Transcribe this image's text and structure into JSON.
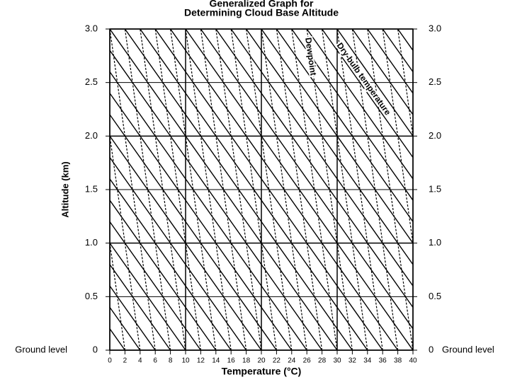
{
  "chart_data": {
    "type": "line",
    "title": [
      "Generalized Graph for",
      "Determining Cloud Base Altitude"
    ],
    "xlabel": "Temperature (°C)",
    "ylabel": "Altitude (km)",
    "ground_label": "Ground level",
    "xlim": [
      0,
      40
    ],
    "ylim": [
      0,
      3
    ],
    "xticks": [
      0,
      2,
      4,
      6,
      8,
      10,
      12,
      14,
      16,
      18,
      20,
      22,
      24,
      26,
      28,
      30,
      32,
      34,
      36,
      38,
      40
    ],
    "yticks": [
      0,
      0.5,
      {
        "value": 1,
        "label": "1.0"
      },
      1.5,
      {
        "value": 2,
        "label": "2.0"
      },
      2.5,
      {
        "value": 3,
        "label": "3.0"
      }
    ],
    "grid": true,
    "series": [
      {
        "name": "Dry-bulb temperature",
        "color": "#000000",
        "dashed": false,
        "lines": [
          {
            "x": [
              2,
              -28
            ],
            "y": [
              0,
              3
            ]
          },
          {
            "x": [
              4,
              -26
            ],
            "y": [
              0,
              3
            ]
          },
          {
            "x": [
              6,
              -24
            ],
            "y": [
              0,
              3
            ]
          },
          {
            "x": [
              8,
              -22
            ],
            "y": [
              0,
              3
            ]
          },
          {
            "x": [
              10,
              -20
            ],
            "y": [
              0,
              3
            ]
          },
          {
            "x": [
              12,
              -18
            ],
            "y": [
              0,
              3
            ]
          },
          {
            "x": [
              14,
              -16
            ],
            "y": [
              0,
              3
            ]
          },
          {
            "x": [
              16,
              -14
            ],
            "y": [
              0,
              3
            ]
          },
          {
            "x": [
              18,
              -12
            ],
            "y": [
              0,
              3
            ]
          },
          {
            "x": [
              20,
              -10
            ],
            "y": [
              0,
              3
            ]
          },
          {
            "x": [
              22,
              -8
            ],
            "y": [
              0,
              3
            ]
          },
          {
            "x": [
              24,
              -6
            ],
            "y": [
              0,
              3
            ]
          },
          {
            "x": [
              26,
              -4
            ],
            "y": [
              0,
              3
            ]
          },
          {
            "x": [
              28,
              -2
            ],
            "y": [
              0,
              3
            ]
          },
          {
            "x": [
              30,
              0
            ],
            "y": [
              0,
              3
            ]
          },
          {
            "x": [
              32,
              2
            ],
            "y": [
              0,
              3
            ]
          },
          {
            "x": [
              34,
              4
            ],
            "y": [
              0,
              3
            ]
          },
          {
            "x": [
              36,
              6
            ],
            "y": [
              0,
              3
            ]
          },
          {
            "x": [
              38,
              8
            ],
            "y": [
              0,
              3
            ]
          },
          {
            "x": [
              40,
              10
            ],
            "y": [
              0,
              3
            ]
          },
          {
            "x": [
              42,
              12
            ],
            "y": [
              0,
              3
            ]
          },
          {
            "x": [
              44,
              14
            ],
            "y": [
              0,
              3
            ]
          },
          {
            "x": [
              46,
              16
            ],
            "y": [
              0,
              3
            ]
          },
          {
            "x": [
              48,
              18
            ],
            "y": [
              0,
              3
            ]
          },
          {
            "x": [
              50,
              20
            ],
            "y": [
              0,
              3
            ]
          },
          {
            "x": [
              52,
              22
            ],
            "y": [
              0,
              3
            ]
          },
          {
            "x": [
              54,
              24
            ],
            "y": [
              0,
              3
            ]
          },
          {
            "x": [
              56,
              26
            ],
            "y": [
              0,
              3
            ]
          },
          {
            "x": [
              58,
              28
            ],
            "y": [
              0,
              3
            ]
          },
          {
            "x": [
              60,
              30
            ],
            "y": [
              0,
              3
            ]
          },
          {
            "x": [
              62,
              32
            ],
            "y": [
              0,
              3
            ]
          },
          {
            "x": [
              64,
              34
            ],
            "y": [
              0,
              3
            ]
          },
          {
            "x": [
              66,
              36
            ],
            "y": [
              0,
              3
            ]
          },
          {
            "x": [
              68,
              38
            ],
            "y": [
              0,
              3
            ]
          },
          {
            "x": [
              70,
              40
            ],
            "y": [
              0,
              3
            ]
          }
        ]
      },
      {
        "name": "Dewpoint",
        "color": "#000000",
        "dashed": true,
        "lines": [
          {
            "x": [
              2,
              -4
            ],
            "y": [
              0,
              3
            ]
          },
          {
            "x": [
              4,
              -2
            ],
            "y": [
              0,
              3
            ]
          },
          {
            "x": [
              6,
              0
            ],
            "y": [
              0,
              3
            ]
          },
          {
            "x": [
              8,
              2
            ],
            "y": [
              0,
              3
            ]
          },
          {
            "x": [
              10,
              4
            ],
            "y": [
              0,
              3
            ]
          },
          {
            "x": [
              12,
              6
            ],
            "y": [
              0,
              3
            ]
          },
          {
            "x": [
              14,
              8
            ],
            "y": [
              0,
              3
            ]
          },
          {
            "x": [
              16,
              10
            ],
            "y": [
              0,
              3
            ]
          },
          {
            "x": [
              18,
              12
            ],
            "y": [
              0,
              3
            ]
          },
          {
            "x": [
              20,
              14
            ],
            "y": [
              0,
              3
            ]
          },
          {
            "x": [
              22,
              16
            ],
            "y": [
              0,
              3
            ]
          },
          {
            "x": [
              24,
              18
            ],
            "y": [
              0,
              3
            ]
          },
          {
            "x": [
              26,
              20
            ],
            "y": [
              0,
              3
            ]
          },
          {
            "x": [
              28,
              22
            ],
            "y": [
              0,
              3
            ]
          },
          {
            "x": [
              30,
              24
            ],
            "y": [
              0,
              3
            ]
          },
          {
            "x": [
              32,
              26
            ],
            "y": [
              0,
              3
            ]
          },
          {
            "x": [
              34,
              28
            ],
            "y": [
              0,
              3
            ]
          },
          {
            "x": [
              36,
              30
            ],
            "y": [
              0,
              3
            ]
          },
          {
            "x": [
              38,
              32
            ],
            "y": [
              0,
              3
            ]
          },
          {
            "x": [
              40,
              34
            ],
            "y": [
              0,
              3
            ]
          },
          {
            "x": [
              42,
              36
            ],
            "y": [
              0,
              3
            ]
          },
          {
            "x": [
              44,
              38
            ],
            "y": [
              0,
              3
            ]
          },
          {
            "x": [
              46,
              40
            ],
            "y": [
              0,
              3
            ]
          }
        ]
      }
    ]
  }
}
